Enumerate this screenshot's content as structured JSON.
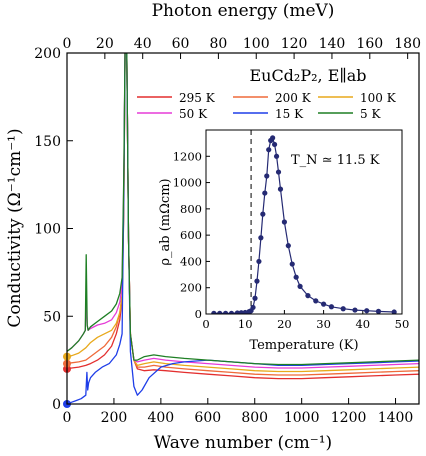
{
  "chart_data": {
    "type": "line",
    "title": "EuCd₂P₂, E∥ab",
    "xlabel": "Wave number (cm⁻¹)",
    "ylabel": "Conductivity (Ω⁻¹cm⁻¹)",
    "top_xlabel": "Photon energy (meV)",
    "xlim": [
      0,
      1500
    ],
    "ylim": [
      0,
      200
    ],
    "x_ticks": [
      0,
      200,
      400,
      600,
      800,
      1000,
      1200,
      1400
    ],
    "y_ticks": [
      0,
      50,
      100,
      150,
      200
    ],
    "top_xlim": [
      0,
      186
    ],
    "top_x_ticks": [
      0,
      20,
      40,
      60,
      80,
      100,
      120,
      140,
      160,
      180
    ],
    "legend_position": "top-right",
    "series": [
      {
        "name": "295 K",
        "color": "#e32f2f",
        "x": [
          0,
          20,
          50,
          80,
          100,
          130,
          160,
          190,
          210,
          225,
          235,
          242,
          248,
          255,
          262,
          270,
          285,
          300,
          330,
          370,
          420,
          500,
          600,
          700,
          800,
          900,
          1000,
          1100,
          1200,
          1300,
          1400,
          1500
        ],
        "y": [
          20,
          20.5,
          21,
          22,
          23,
          25,
          28,
          33,
          40,
          48,
          60,
          110,
          210,
          200,
          95,
          40,
          25,
          20,
          19,
          19.5,
          19,
          18,
          17,
          16,
          15,
          14.5,
          14.5,
          15,
          15.5,
          16,
          16.5,
          17
        ]
      },
      {
        "name": "200 K",
        "color": "#ef6a3a",
        "x": [
          0,
          20,
          50,
          80,
          100,
          130,
          160,
          190,
          210,
          225,
          235,
          242,
          248,
          255,
          262,
          270,
          285,
          300,
          330,
          370,
          420,
          500,
          600,
          700,
          800,
          900,
          1000,
          1100,
          1200,
          1300,
          1400,
          1500
        ],
        "y": [
          23,
          23.5,
          24,
          25,
          27,
          30,
          33,
          38,
          44,
          52,
          62,
          115,
          210,
          200,
          95,
          40,
          25,
          21,
          21,
          22,
          21,
          20,
          19,
          18,
          17,
          16.5,
          16.5,
          17,
          17.5,
          18,
          18.5,
          19
        ]
      },
      {
        "name": "100 K",
        "color": "#e8a91c",
        "x": [
          0,
          20,
          50,
          80,
          100,
          130,
          160,
          190,
          210,
          225,
          235,
          242,
          248,
          255,
          262,
          270,
          285,
          300,
          330,
          370,
          420,
          500,
          600,
          700,
          800,
          900,
          1000,
          1100,
          1200,
          1300,
          1400,
          1500
        ],
        "y": [
          27,
          27.5,
          29,
          32,
          35,
          38,
          40,
          42,
          46,
          52,
          62,
          120,
          210,
          200,
          95,
          40,
          25,
          22,
          23,
          24,
          23,
          22,
          21,
          20,
          19,
          18.5,
          18.5,
          19,
          19.5,
          20,
          20.5,
          21
        ]
      },
      {
        "name": "50 K",
        "color": "#e53cd7",
        "x": [
          0,
          20,
          50,
          70,
          78,
          82,
          86,
          90,
          100,
          130,
          160,
          190,
          210,
          225,
          235,
          242,
          248,
          255,
          262,
          270,
          285,
          300,
          330,
          370,
          420,
          500,
          600,
          700,
          800,
          900,
          1000,
          1100,
          1200,
          1300,
          1400,
          1500
        ],
        "y": [
          30,
          32,
          36,
          40,
          42,
          60,
          45,
          42,
          43,
          45,
          46,
          48,
          52,
          58,
          68,
          125,
          210,
          200,
          95,
          40,
          25,
          24,
          25,
          26,
          25,
          24,
          23,
          22,
          21,
          20.5,
          20.5,
          21,
          21.5,
          22,
          22.5,
          23
        ]
      },
      {
        "name": "15 K",
        "color": "#1f3ee8",
        "x": [
          0,
          20,
          40,
          60,
          80,
          85,
          88,
          92,
          100,
          120,
          150,
          180,
          210,
          225,
          235,
          242,
          248,
          255,
          262,
          270,
          285,
          300,
          320,
          350,
          400,
          450,
          500,
          600,
          700,
          800,
          900,
          1000,
          1100,
          1200,
          1300,
          1400,
          1500
        ],
        "y": [
          0,
          1,
          2,
          3,
          5,
          18,
          8,
          12,
          15,
          18,
          21,
          23,
          28,
          34,
          40,
          120,
          210,
          200,
          95,
          30,
          10,
          5,
          8,
          15,
          21,
          23,
          24,
          25,
          24,
          23,
          22,
          22,
          22.5,
          23,
          23.5,
          24,
          24.5
        ]
      },
      {
        "name": "5 K",
        "color": "#1e7f24",
        "x": [
          0,
          20,
          50,
          70,
          78,
          82,
          86,
          90,
          100,
          130,
          160,
          190,
          210,
          225,
          235,
          242,
          248,
          255,
          262,
          270,
          285,
          300,
          330,
          370,
          420,
          500,
          600,
          700,
          800,
          900,
          1000,
          1100,
          1200,
          1300,
          1400,
          1500
        ],
        "y": [
          30,
          32,
          36,
          40,
          42,
          85,
          45,
          42,
          44,
          47,
          50,
          53,
          57,
          63,
          72,
          130,
          210,
          200,
          95,
          40,
          25,
          25,
          27,
          28,
          27,
          26,
          25,
          24,
          23,
          22.5,
          22.5,
          23,
          23.5,
          24,
          24.5,
          25
        ]
      }
    ],
    "dc_points": [
      {
        "x": 0,
        "y": 20,
        "color": "#e32f2f"
      },
      {
        "x": 0,
        "y": 23,
        "color": "#ef6a3a"
      },
      {
        "x": 0,
        "y": 27,
        "color": "#e8a91c"
      },
      {
        "x": 0,
        "y": 0,
        "color": "#1f3ee8"
      }
    ],
    "inset": {
      "type": "scatter",
      "xlabel": "Temperature (K)",
      "ylabel": "ρ_ab (mΩcm)",
      "xlim": [
        0,
        50
      ],
      "ylim": [
        0,
        1400
      ],
      "x_ticks": [
        0,
        10,
        20,
        30,
        40,
        50
      ],
      "y_ticks": [
        0,
        200,
        400,
        600,
        800,
        1000,
        1200
      ],
      "annotation": "T_N ≃ 11.5 K",
      "tn": 11.5,
      "color": "#252a73",
      "x": [
        2,
        3.5,
        5,
        6.5,
        8,
        9,
        10,
        11,
        11.5,
        12,
        12.5,
        13,
        13.5,
        14,
        14.5,
        15,
        15.5,
        16,
        16.5,
        17,
        17.5,
        18,
        18.5,
        19,
        20,
        21,
        22,
        23,
        24,
        26,
        28,
        30,
        32,
        35,
        38,
        41,
        44,
        48
      ],
      "y": [
        5,
        5,
        5,
        5,
        8,
        10,
        12,
        18,
        25,
        50,
        120,
        250,
        400,
        580,
        760,
        920,
        1050,
        1250,
        1320,
        1340,
        1290,
        1200,
        1080,
        950,
        700,
        520,
        380,
        280,
        210,
        140,
        100,
        75,
        55,
        40,
        30,
        25,
        20,
        15
      ]
    }
  }
}
